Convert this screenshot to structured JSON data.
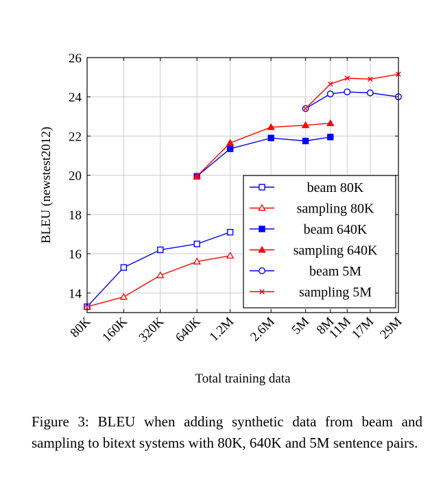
{
  "chart_data": {
    "type": "line",
    "title": "",
    "xlabel": "Total training data",
    "ylabel": "BLEU (newstest2012)",
    "categories": [
      "80K",
      "160K",
      "320K",
      "640K",
      "1.2M",
      "2.6M",
      "5M",
      "8M",
      "11M",
      "17M",
      "29M"
    ],
    "x_scale": "log",
    "x_values": [
      80000,
      160000,
      320000,
      640000,
      1200000,
      2600000,
      5000000,
      8000000,
      11000000,
      17000000,
      29000000
    ],
    "ylim": [
      13,
      26
    ],
    "yticks": [
      14,
      16,
      18,
      20,
      22,
      24,
      26
    ],
    "grid": true,
    "legend_position": "bottom-right",
    "series": [
      {
        "name": "beam 80K",
        "color": "#0000ff",
        "marker": "square-open",
        "x": [
          80000,
          160000,
          320000,
          640000,
          1200000
        ],
        "y": [
          13.3,
          15.3,
          16.2,
          16.5,
          17.1
        ]
      },
      {
        "name": "sampling 80K",
        "color": "#ff0000",
        "marker": "triangle-open",
        "x": [
          80000,
          160000,
          320000,
          640000,
          1200000
        ],
        "y": [
          13.3,
          13.8,
          14.9,
          15.6,
          15.9
        ]
      },
      {
        "name": "beam 640K",
        "color": "#0000ff",
        "marker": "square-filled",
        "x": [
          640000,
          1200000,
          2600000,
          5000000,
          8000000
        ],
        "y": [
          19.95,
          21.35,
          21.9,
          21.75,
          21.95
        ]
      },
      {
        "name": "sampling 640K",
        "color": "#ff0000",
        "marker": "triangle-filled",
        "x": [
          640000,
          1200000,
          2600000,
          5000000,
          8000000
        ],
        "y": [
          19.95,
          21.65,
          22.45,
          22.55,
          22.65
        ]
      },
      {
        "name": "beam 5M",
        "color": "#0000ff",
        "marker": "circle-open",
        "x": [
          5000000,
          8000000,
          11000000,
          17000000,
          29000000
        ],
        "y": [
          23.4,
          24.15,
          24.25,
          24.2,
          24.0
        ]
      },
      {
        "name": "sampling 5M",
        "color": "#ff0000",
        "marker": "x",
        "x": [
          5000000,
          8000000,
          11000000,
          17000000,
          29000000
        ],
        "y": [
          23.4,
          24.65,
          24.95,
          24.9,
          25.15
        ]
      }
    ]
  },
  "caption": "Figure 3: BLEU when adding synthetic data from beam and sampling to bitext systems with 80K, 640K and 5M sentence pairs."
}
